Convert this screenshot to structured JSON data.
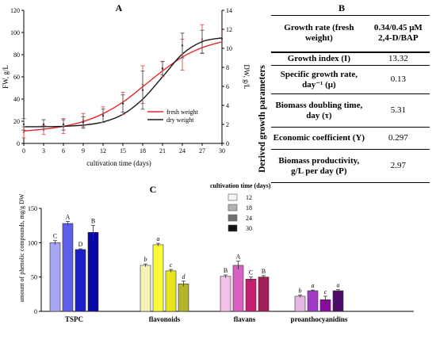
{
  "chart_data": [
    {
      "panel": "A",
      "type": "line",
      "xlabel": "cultivation time (days)",
      "ylabel_left": "FW, g/L",
      "ylabel_right": "DW, g/L",
      "x_ticks": [
        0,
        3,
        6,
        9,
        12,
        15,
        18,
        21,
        24,
        27,
        30
      ],
      "y_left_ticks": [
        0,
        20,
        40,
        60,
        80,
        100,
        120
      ],
      "y_right_ticks": [
        0,
        2,
        4,
        6,
        8,
        10,
        12,
        14
      ],
      "xlim": [
        0,
        30
      ],
      "ylim_left": [
        0,
        120
      ],
      "ylim_right": [
        0,
        14
      ],
      "legend_position": "bottom-right",
      "series": [
        {
          "name": "fresh weight",
          "color": "#e8262b",
          "axis": "left",
          "points": [
            {
              "x": 0,
              "y": 10,
              "err": 5
            },
            {
              "x": 3,
              "y": 12,
              "err": 4
            },
            {
              "x": 6,
              "y": 15,
              "err": 6
            },
            {
              "x": 9,
              "y": 21,
              "err": 6
            },
            {
              "x": 12,
              "y": 26,
              "err": 7
            },
            {
              "x": 15,
              "y": 36,
              "err": 10
            },
            {
              "x": 18,
              "y": 53,
              "err": 17
            },
            {
              "x": 21,
              "y": 67,
              "err": 7
            },
            {
              "x": 24,
              "y": 80,
              "err": 14
            },
            {
              "x": 27,
              "y": 94,
              "err": 13
            },
            {
              "x": 30,
              "y": 99,
              "err": 0
            }
          ],
          "curve": [
            [
              0,
              11.2
            ],
            [
              3,
              12.8
            ],
            [
              6,
              15.4
            ],
            [
              9,
              19.7
            ],
            [
              12,
              26.8
            ],
            [
              15,
              37.2
            ],
            [
              18,
              51.1
            ],
            [
              21,
              65.3
            ],
            [
              24,
              77.8
            ],
            [
              27,
              86.3
            ],
            [
              30,
              91.6
            ]
          ]
        },
        {
          "name": "dry weight",
          "color": "#1a1a1a",
          "axis": "right",
          "points": [
            {
              "x": 0,
              "y": 2.0,
              "err": 0.6
            },
            {
              "x": 3,
              "y": 2.0,
              "err": 0.5
            },
            {
              "x": 6,
              "y": 2.0,
              "err": 0.6
            },
            {
              "x": 9,
              "y": 2.2,
              "err": 0.6
            },
            {
              "x": 12,
              "y": 2.9,
              "err": 0.7
            },
            {
              "x": 15,
              "y": 4.2,
              "err": 0.9
            },
            {
              "x": 18,
              "y": 5.6,
              "err": 2.0
            },
            {
              "x": 21,
              "y": 7.9,
              "err": 0.7
            },
            {
              "x": 24,
              "y": 10.3,
              "err": 1.3
            },
            {
              "x": 27,
              "y": 10.7,
              "err": 1.2
            },
            {
              "x": 30,
              "y": 11.0,
              "err": 0.0
            }
          ],
          "curve": [
            [
              0,
              1.75
            ],
            [
              3,
              1.76
            ],
            [
              6,
              1.8
            ],
            [
              9,
              1.92
            ],
            [
              12,
              2.25
            ],
            [
              15,
              3.05
            ],
            [
              18,
              4.65
            ],
            [
              21,
              7.0
            ],
            [
              24,
              9.4
            ],
            [
              27,
              10.7
            ],
            [
              30,
              11.1
            ]
          ]
        }
      ]
    },
    {
      "panel": "C",
      "type": "bar",
      "ylabel": "amount of phenolic compounds, mg/g DW",
      "ylim": [
        0,
        150
      ],
      "y_ticks": [
        0,
        50,
        100,
        150
      ],
      "categories": [
        "TSPC",
        "flavonoids",
        "flavans",
        "proanthocyanidins"
      ],
      "legend_title": "cultivation time (days)",
      "legend_position": "top-right",
      "series": [
        {
          "name": "12",
          "values": [
            100,
            67,
            51,
            22
          ],
          "errors": [
            3,
            2,
            2,
            1.5
          ]
        },
        {
          "name": "18",
          "values": [
            128,
            97,
            67,
            30
          ],
          "errors": [
            3,
            2,
            6,
            1
          ]
        },
        {
          "name": "24",
          "values": [
            90,
            59,
            47,
            17
          ],
          "errors": [
            1,
            2,
            3,
            5
          ]
        },
        {
          "name": "30",
          "values": [
            115,
            40,
            50,
            30
          ],
          "errors": [
            10,
            4,
            2,
            1.5
          ]
        }
      ],
      "colors": [
        [
          "#a6a6f2",
          "#5e5eea",
          "#1c1ec9",
          "#0808a4"
        ],
        [
          "#f4f2b6",
          "#fbfb3e",
          "#e6e61a",
          "#b6b428"
        ],
        [
          "#f6c0e6",
          "#d860c0",
          "#c41e6e",
          "#a41e58"
        ],
        [
          "#e6b6e6",
          "#a03cc4",
          "#8c0aa0",
          "#4a0c68"
        ]
      ],
      "legend_swatches": [
        "#f4f4f4",
        "#b2b2b2",
        "#707070",
        "#111111"
      ],
      "letters": [
        [
          "C",
          "A",
          "D",
          "B"
        ],
        [
          "b",
          "a",
          "c",
          "d"
        ],
        [
          "B",
          "A",
          "C",
          "B"
        ],
        [
          "b",
          "a",
          "c",
          "a"
        ]
      ]
    }
  ],
  "panel_b": {
    "title": "B",
    "side_label": "Derived growth parameters",
    "header": {
      "param": "Growth rate (fresh weight)",
      "value": "0.34/0.45 μM 2,4-D/BAP"
    },
    "rows": [
      {
        "param": "Growth index (I)",
        "value": "13.32"
      },
      {
        "param": "Specific growth rate, day⁻¹ (μ)",
        "value": "0.13"
      },
      {
        "param": "Biomass doubling time, day (τ)",
        "value": "5.31"
      },
      {
        "param": "Economic coefficient (Y)",
        "value": "0.297"
      },
      {
        "param": "Biomass productivity, g/L per day (P)",
        "value": "2.97"
      }
    ]
  }
}
